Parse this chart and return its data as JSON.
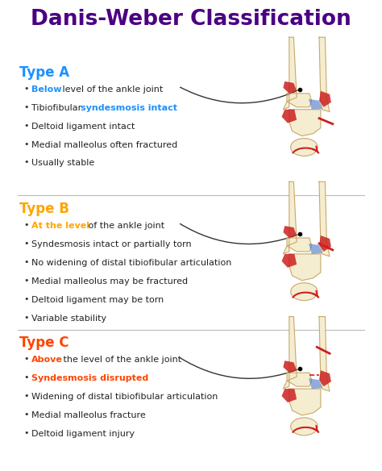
{
  "title": "Danis-Weber Classification",
  "title_color": "#4B0082",
  "background_color": "#ffffff",
  "bone_fill": "#F5EDD0",
  "bone_edge": "#C8A86B",
  "red_accent": "#CC2020",
  "blue_accent": "#5580CC",
  "sections": [
    {
      "type_label": "Type A",
      "type_color": "#1E90FF",
      "fracture_level": "A",
      "bullets": [
        {
          "parts": [
            {
              "text": "Below",
              "color": "#1E90FF",
              "bold": true
            },
            {
              "text": " level of the ankle joint",
              "color": "#222222",
              "bold": false
            }
          ]
        },
        {
          "parts": [
            {
              "text": "Tibiofibular ",
              "color": "#222222",
              "bold": false
            },
            {
              "text": "syndesmosis intact",
              "color": "#1E90FF",
              "bold": true
            }
          ]
        },
        {
          "parts": [
            {
              "text": "Deltoid ligament intact",
              "color": "#222222",
              "bold": false
            }
          ]
        },
        {
          "parts": [
            {
              "text": "Medial malleolus often fractured",
              "color": "#222222",
              "bold": false
            }
          ]
        },
        {
          "parts": [
            {
              "text": "Usually stable",
              "color": "#222222",
              "bold": false
            }
          ]
        }
      ]
    },
    {
      "type_label": "Type B",
      "type_color": "#FFA500",
      "fracture_level": "B",
      "bullets": [
        {
          "parts": [
            {
              "text": "At the level",
              "color": "#FFA500",
              "bold": true
            },
            {
              "text": " of the ankle joint",
              "color": "#222222",
              "bold": false
            }
          ]
        },
        {
          "parts": [
            {
              "text": "Syndesmosis intact or partially torn",
              "color": "#222222",
              "bold": false
            }
          ]
        },
        {
          "parts": [
            {
              "text": "No widening of distal tibiofibular articulation",
              "color": "#222222",
              "bold": false
            }
          ]
        },
        {
          "parts": [
            {
              "text": "Medial malleolus may be fractured",
              "color": "#222222",
              "bold": false
            }
          ]
        },
        {
          "parts": [
            {
              "text": "Deltoid ligament may be torn",
              "color": "#222222",
              "bold": false
            }
          ]
        },
        {
          "parts": [
            {
              "text": "Variable stability",
              "color": "#222222",
              "bold": false
            }
          ]
        }
      ]
    },
    {
      "type_label": "Type C",
      "type_color": "#FF4500",
      "fracture_level": "C",
      "bullets": [
        {
          "parts": [
            {
              "text": "Above",
              "color": "#FF4500",
              "bold": true
            },
            {
              "text": " the level of the ankle joint",
              "color": "#222222",
              "bold": false
            }
          ]
        },
        {
          "parts": [
            {
              "text": "Syndesmosis disrupted",
              "color": "#FF4500",
              "bold": true
            }
          ]
        },
        {
          "parts": [
            {
              "text": "Widening of distal tibiofibular articulation",
              "color": "#222222",
              "bold": false
            }
          ]
        },
        {
          "parts": [
            {
              "text": "Medial malleolus fracture",
              "color": "#222222",
              "bold": false
            }
          ]
        },
        {
          "parts": [
            {
              "text": "Deltoid ligament injury",
              "color": "#222222",
              "bold": false
            }
          ]
        }
      ]
    }
  ]
}
